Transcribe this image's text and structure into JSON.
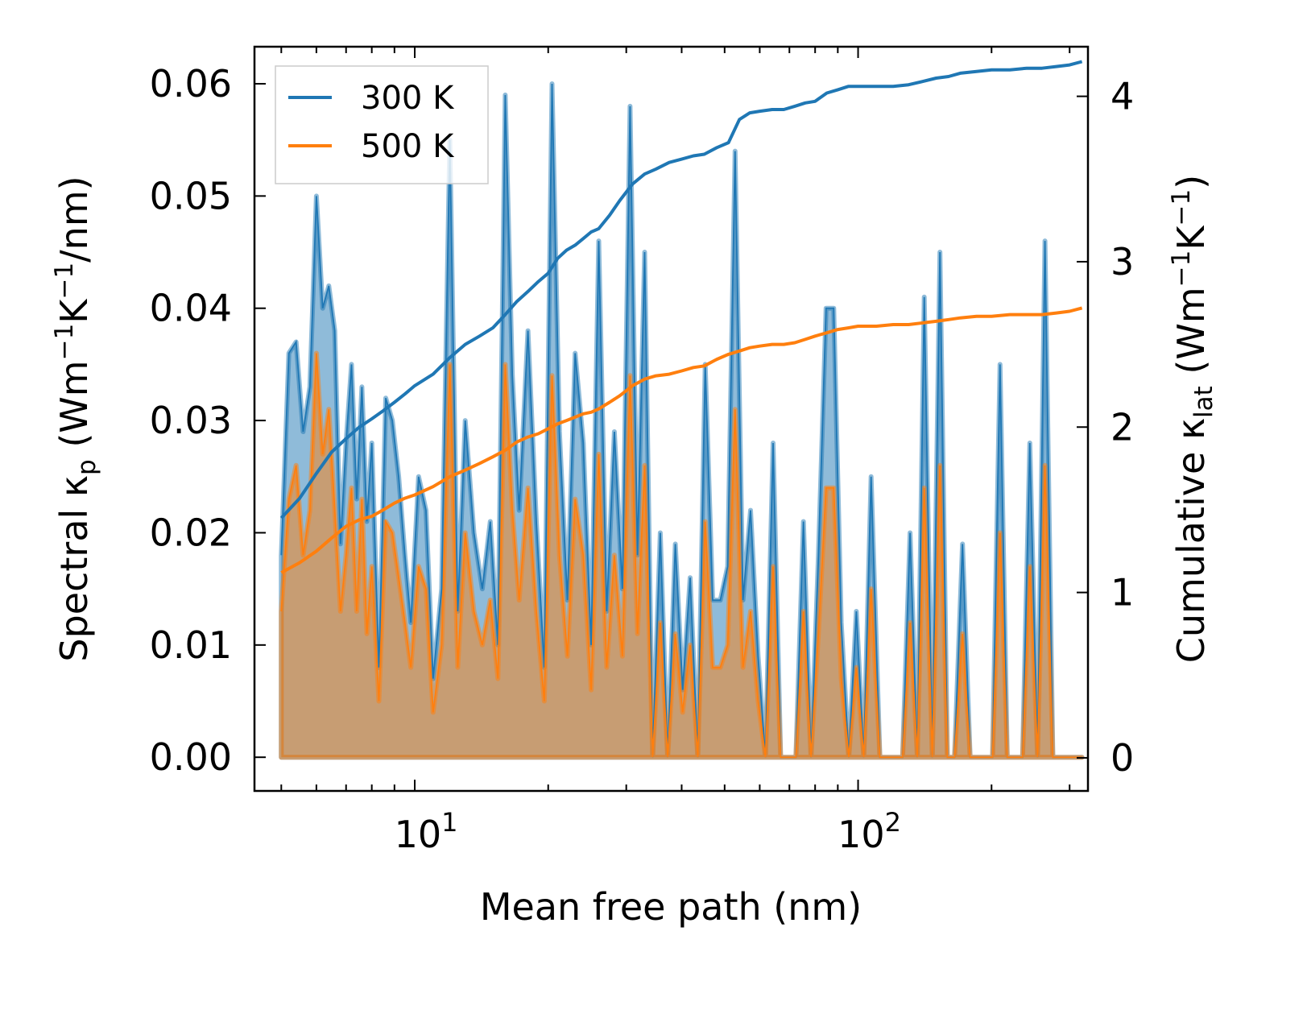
{
  "chart_data": {
    "type": "line",
    "xscale": "log",
    "xlabel": "Mean free path (nm)",
    "ylabel_left": {
      "main": "Spectral κ",
      "sub": "p",
      "unit_prefix": " (Wm",
      "exp1": "−1",
      "unit_mid": "K",
      "exp2": "−1",
      "unit_suffix": "/nm)"
    },
    "ylabel_right": {
      "main": "Cumulative κ",
      "sub": "lat",
      "unit_prefix": " (Wm",
      "exp1": "−1",
      "unit_mid": "K",
      "exp2": "−1",
      "unit_suffix": ")"
    },
    "xlim": [
      4.35,
      330
    ],
    "ylim_left": [
      -0.003,
      0.0633
    ],
    "ylim_right": [
      -0.2,
      4.3
    ],
    "xticks": [
      {
        "value": 10,
        "base": "10",
        "exp": "1"
      },
      {
        "value": 100,
        "base": "10",
        "exp": "2"
      }
    ],
    "yticks_left": [
      "0.00",
      "0.01",
      "0.02",
      "0.03",
      "0.04",
      "0.05",
      "0.06"
    ],
    "yticks_left_values": [
      0,
      0.01,
      0.02,
      0.03,
      0.04,
      0.05,
      0.06
    ],
    "yticks_right": [
      "0",
      "1",
      "2",
      "3",
      "4"
    ],
    "yticks_right_values": [
      0,
      1,
      2,
      3,
      4
    ],
    "legend": {
      "position": "upper-left",
      "entries": [
        "300 K",
        "500 K"
      ]
    },
    "colors": {
      "s300": "#1f77b4",
      "s500": "#ff7f0e",
      "fill300": "#1f77b4",
      "fill500": "#ff7f0e"
    },
    "spectral": {
      "x": [
        5.0,
        5.2,
        5.4,
        5.6,
        5.8,
        6.0,
        6.2,
        6.4,
        6.6,
        6.8,
        7.0,
        7.2,
        7.4,
        7.6,
        7.8,
        8.0,
        8.3,
        8.6,
        8.9,
        9.2,
        9.5,
        9.8,
        10.2,
        10.6,
        11.0,
        11.5,
        12.0,
        12.5,
        13.0,
        13.6,
        14.2,
        14.8,
        15.4,
        16.0,
        16.6,
        17.2,
        18.0,
        18.8,
        19.6,
        20.4,
        21.2,
        22.1,
        23.0,
        24.0,
        25.0,
        26.0,
        27.1,
        28.2,
        29.4,
        30.6,
        31.8,
        33.0,
        34.4,
        35.8,
        37.2,
        38.7,
        40.2,
        41.8,
        43.5,
        45.2,
        47.0,
        48.9,
        50.8,
        52.8,
        55.0,
        57.2,
        59.5,
        61.8,
        64.3,
        66.9,
        69.6,
        72.4,
        75.3,
        78.3,
        81.4,
        84.7,
        88.1,
        91.6,
        95.3,
        99.1,
        103,
        107,
        112,
        116,
        121,
        126,
        131,
        136,
        141,
        147,
        153,
        159,
        165,
        172,
        179,
        186,
        193,
        201,
        209,
        217,
        226,
        235,
        244,
        254,
        264,
        275,
        286,
        297,
        309,
        320
      ],
      "y300": [
        0.018,
        0.036,
        0.037,
        0.029,
        0.033,
        0.05,
        0.04,
        0.042,
        0.038,
        0.019,
        0.028,
        0.035,
        0.023,
        0.033,
        0.021,
        0.028,
        0.008,
        0.032,
        0.03,
        0.025,
        0.018,
        0.012,
        0.025,
        0.022,
        0.007,
        0.015,
        0.055,
        0.013,
        0.03,
        0.02,
        0.015,
        0.021,
        0.01,
        0.059,
        0.034,
        0.022,
        0.038,
        0.021,
        0.008,
        0.06,
        0.029,
        0.014,
        0.036,
        0.028,
        0.01,
        0.046,
        0.013,
        0.029,
        0.015,
        0.058,
        0.018,
        0.045,
        0.0,
        0.02,
        0.0,
        0.019,
        0.006,
        0.016,
        0.0,
        0.035,
        0.014,
        0.014,
        0.017,
        0.054,
        0.014,
        0.022,
        0.009,
        0.0,
        0.028,
        0.0,
        0.0,
        0.0,
        0.021,
        0.0,
        0.018,
        0.04,
        0.04,
        0.012,
        0.0,
        0.013,
        0.0,
        0.025,
        0.0,
        0.0,
        0.0,
        0.0,
        0.02,
        0.0,
        0.041,
        0.0,
        0.045,
        0.0,
        0.0,
        0.019,
        0.0,
        0.0,
        0.0,
        0.0,
        0.035,
        0.0,
        0.0,
        0.0,
        0.028,
        0.0,
        0.046,
        0.0,
        0.0,
        0.0,
        0.0,
        0.0
      ],
      "y500": [
        0.013,
        0.023,
        0.026,
        0.018,
        0.022,
        0.036,
        0.027,
        0.031,
        0.022,
        0.013,
        0.018,
        0.024,
        0.013,
        0.023,
        0.011,
        0.017,
        0.005,
        0.021,
        0.02,
        0.016,
        0.012,
        0.008,
        0.017,
        0.015,
        0.004,
        0.01,
        0.035,
        0.008,
        0.02,
        0.013,
        0.01,
        0.014,
        0.007,
        0.035,
        0.022,
        0.014,
        0.024,
        0.013,
        0.005,
        0.034,
        0.018,
        0.009,
        0.023,
        0.018,
        0.006,
        0.027,
        0.008,
        0.018,
        0.009,
        0.034,
        0.011,
        0.026,
        0.0,
        0.012,
        0.0,
        0.011,
        0.004,
        0.01,
        0.0,
        0.021,
        0.008,
        0.008,
        0.01,
        0.031,
        0.008,
        0.013,
        0.005,
        0.0,
        0.017,
        0.0,
        0.0,
        0.0,
        0.013,
        0.0,
        0.011,
        0.024,
        0.024,
        0.007,
        0.0,
        0.008,
        0.0,
        0.015,
        0.0,
        0.0,
        0.0,
        0.0,
        0.012,
        0.0,
        0.024,
        0.0,
        0.026,
        0.0,
        0.0,
        0.011,
        0.0,
        0.0,
        0.0,
        0.0,
        0.02,
        0.0,
        0.0,
        0.0,
        0.017,
        0.0,
        0.026,
        0.0,
        0.0,
        0.0,
        0.0,
        0.0
      ]
    },
    "cumulative": {
      "x": [
        5.0,
        5.5,
        6.0,
        6.5,
        7.0,
        7.5,
        8.0,
        8.5,
        9.0,
        9.5,
        10.0,
        11.0,
        12.0,
        13.0,
        14.0,
        15.0,
        16.0,
        17.0,
        18.0,
        19.0,
        20.0,
        21.0,
        22.0,
        23.0,
        24.0,
        25.0,
        26.0,
        27.5,
        29.0,
        31.0,
        33.0,
        35.0,
        37.5,
        40.0,
        42.5,
        45.0,
        48.0,
        51.0,
        54.0,
        57.0,
        60.0,
        64.0,
        68.0,
        72.0,
        76.0,
        80.0,
        85.0,
        90.0,
        95.0,
        100.0,
        110.0,
        120.0,
        130.0,
        140.0,
        150.0,
        160.0,
        170.0,
        185.0,
        200.0,
        220.0,
        240.0,
        260.0,
        280.0,
        300.0,
        320.0
      ],
      "y300": [
        1.45,
        1.57,
        1.72,
        1.85,
        1.93,
        2.0,
        2.05,
        2.1,
        2.15,
        2.2,
        2.25,
        2.32,
        2.42,
        2.5,
        2.55,
        2.6,
        2.68,
        2.76,
        2.82,
        2.88,
        2.93,
        3.02,
        3.07,
        3.1,
        3.14,
        3.18,
        3.2,
        3.28,
        3.37,
        3.47,
        3.53,
        3.56,
        3.6,
        3.62,
        3.64,
        3.65,
        3.69,
        3.72,
        3.86,
        3.9,
        3.91,
        3.92,
        3.92,
        3.94,
        3.96,
        3.97,
        4.02,
        4.04,
        4.06,
        4.06,
        4.06,
        4.06,
        4.07,
        4.09,
        4.11,
        4.12,
        4.14,
        4.15,
        4.16,
        4.16,
        4.17,
        4.17,
        4.18,
        4.19,
        4.21
      ],
      "y500": [
        1.12,
        1.18,
        1.25,
        1.33,
        1.4,
        1.44,
        1.46,
        1.5,
        1.54,
        1.57,
        1.59,
        1.64,
        1.7,
        1.74,
        1.78,
        1.82,
        1.86,
        1.91,
        1.94,
        1.96,
        1.99,
        2.02,
        2.04,
        2.06,
        2.08,
        2.09,
        2.11,
        2.15,
        2.19,
        2.25,
        2.29,
        2.31,
        2.32,
        2.34,
        2.36,
        2.37,
        2.41,
        2.44,
        2.46,
        2.48,
        2.49,
        2.5,
        2.5,
        2.51,
        2.53,
        2.55,
        2.57,
        2.59,
        2.6,
        2.61,
        2.61,
        2.62,
        2.62,
        2.63,
        2.64,
        2.65,
        2.66,
        2.67,
        2.67,
        2.68,
        2.68,
        2.68,
        2.69,
        2.7,
        2.72
      ]
    }
  }
}
